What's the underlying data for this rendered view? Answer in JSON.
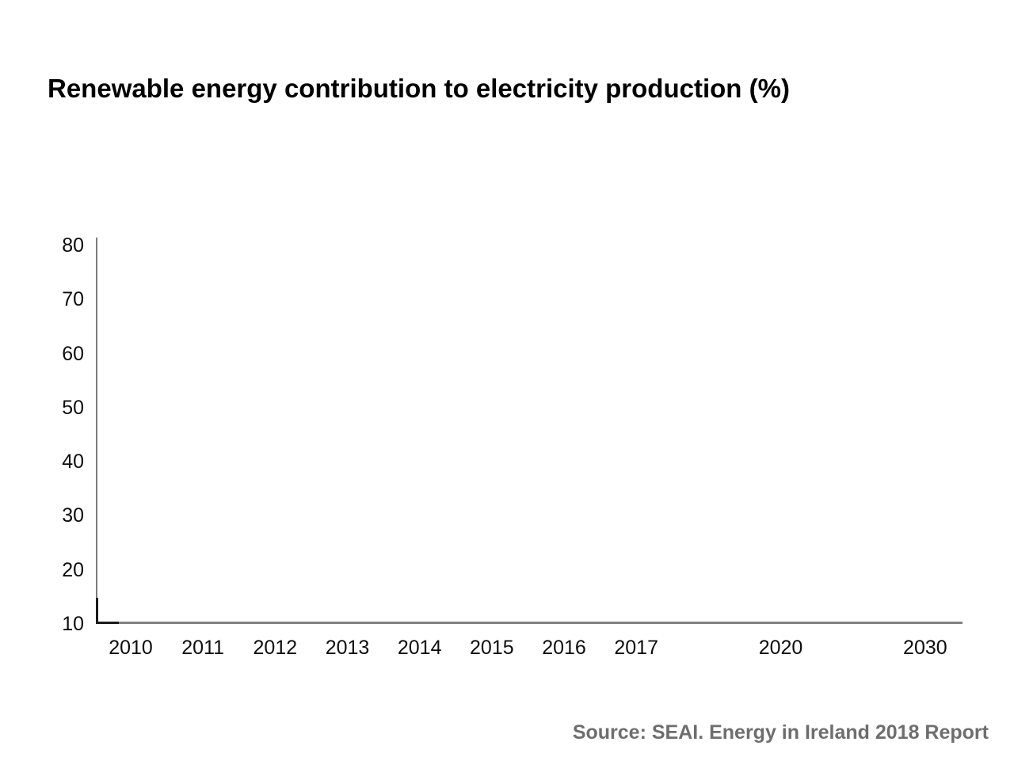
{
  "title": "Renewable energy contribution to electricity production (%)",
  "source_note": "Source: SEAI. Energy in Ireland 2018 Report",
  "colors": {
    "background": "#ffffff",
    "title_text": "#000000",
    "axis_line": "#7b7b7b",
    "axis_corner_segment": "#1b1b1b",
    "tick_label_text": "#0d0d0d",
    "source_text": "#6e6e6e"
  },
  "chart_data": {
    "type": "line",
    "title": "Renewable energy contribution to electricity production (%)",
    "xlabel": "",
    "ylabel": "",
    "x_categories": [
      "2010",
      "2011",
      "2012",
      "2013",
      "2014",
      "2015",
      "2016",
      "2017",
      "2020",
      "2030"
    ],
    "y_tick_labels": [
      "80",
      "70",
      "60",
      "50",
      "40",
      "30",
      "20",
      "10"
    ],
    "y_ticks": [
      80,
      70,
      60,
      50,
      40,
      30,
      20,
      10
    ],
    "ylim": [
      10,
      80
    ],
    "grid": false,
    "legend": false,
    "series": [],
    "visible_data_points": "none - empty axes only, no plotted series visible"
  }
}
